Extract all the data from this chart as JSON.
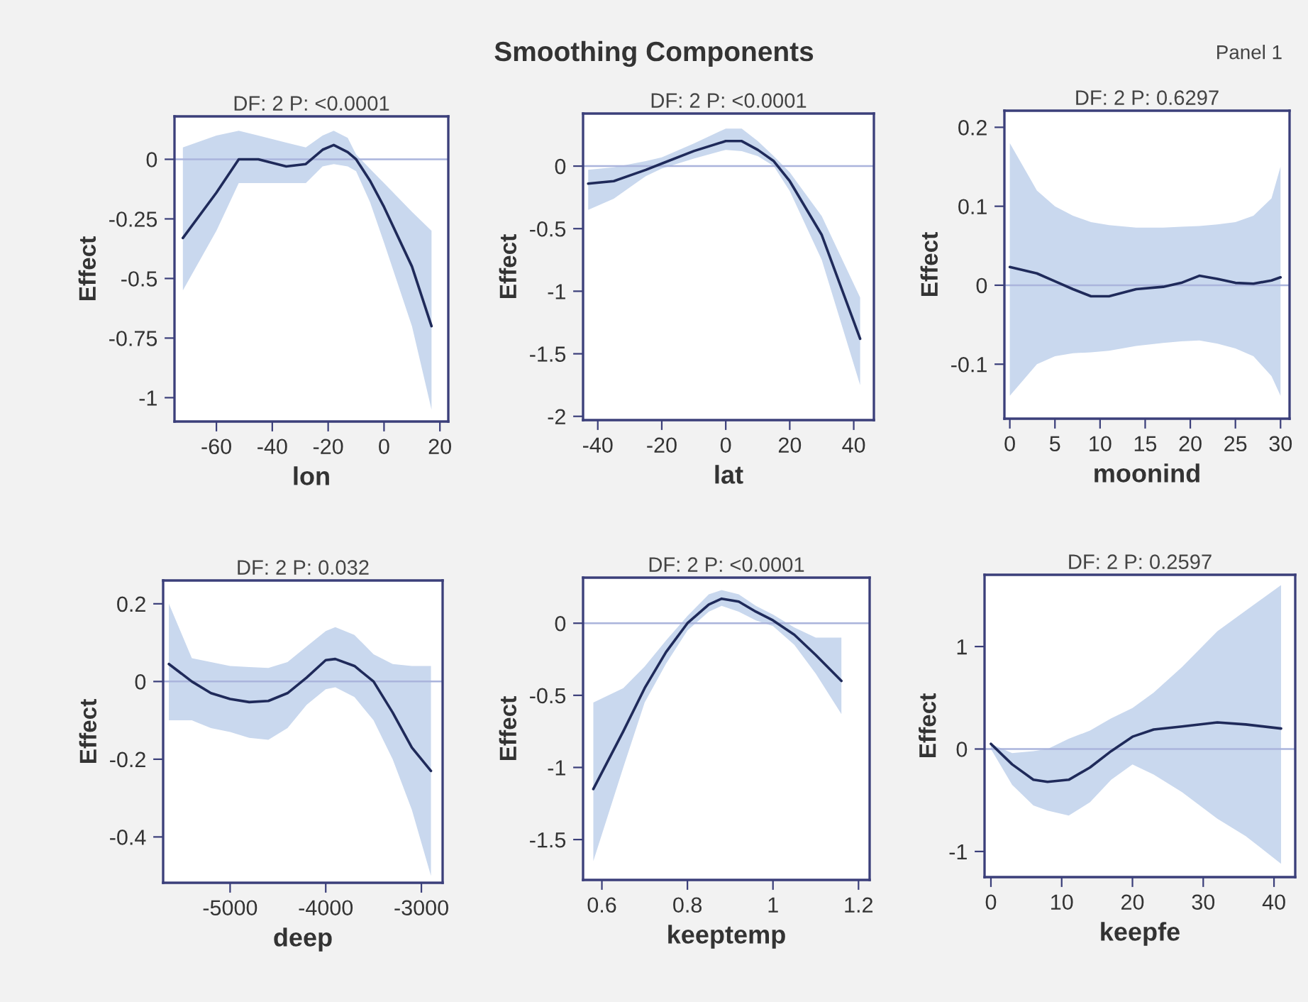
{
  "chart_data": [
    {
      "type": "line",
      "title": "DF: 2 P: <0.0001",
      "xlabel": "lon",
      "ylabel": "Effect",
      "annotations": [
        "Smoothing Components",
        "Panel 1"
      ],
      "xlim": [
        -75,
        23
      ],
      "ylim": [
        -1.1,
        0.18
      ],
      "xticks": [
        -60,
        -40,
        -20,
        0,
        20
      ],
      "yticks": [
        0,
        -0.25,
        -0.5,
        -0.75,
        -1
      ],
      "ref_lines": [
        {
          "axis": "y",
          "value": 0,
          "color": "#aab4dc"
        }
      ],
      "series": [
        {
          "color": "#1f2a5a",
          "x": [
            -72,
            -60,
            -52,
            -45,
            -35,
            -28,
            -22,
            -18,
            -13,
            -10,
            -5,
            0,
            10,
            17
          ],
          "values": [
            -0.33,
            -0.14,
            0.0,
            0.0,
            -0.03,
            -0.02,
            0.04,
            0.06,
            0.03,
            0.0,
            -0.09,
            -0.2,
            -0.45,
            -0.7
          ],
          "lower": [
            -0.55,
            -0.3,
            -0.1,
            -0.1,
            -0.1,
            -0.1,
            -0.03,
            -0.02,
            -0.03,
            -0.05,
            -0.18,
            -0.35,
            -0.7,
            -1.05
          ],
          "upper": [
            0.05,
            0.1,
            0.12,
            0.1,
            0.07,
            0.05,
            0.1,
            0.12,
            0.09,
            0.02,
            -0.04,
            -0.1,
            -0.22,
            -0.3
          ]
        }
      ]
    },
    {
      "type": "line",
      "title": "DF: 2 P: <0.0001",
      "xlabel": "lat",
      "ylabel": "Effect",
      "xlim": [
        -44.6,
        46.3
      ],
      "ylim": [
        -2.03,
        0.42
      ],
      "xticks": [
        -40,
        -20,
        0,
        20,
        40
      ],
      "yticks": [
        0,
        -0.5,
        -1,
        -1.5,
        -2
      ],
      "ref_lines": [
        {
          "axis": "y",
          "value": 0,
          "color": "#aab4dc"
        }
      ],
      "series": [
        {
          "color": "#1f2a5a",
          "x": [
            -43,
            -35,
            -25,
            -20,
            -10,
            0,
            5,
            10,
            15,
            20,
            30,
            42
          ],
          "values": [
            -0.14,
            -0.12,
            -0.03,
            0.02,
            0.12,
            0.2,
            0.2,
            0.13,
            0.04,
            -0.12,
            -0.55,
            -1.38
          ],
          "lower": [
            -0.35,
            -0.26,
            -0.08,
            -0.02,
            0.06,
            0.13,
            0.12,
            0.08,
            0.0,
            -0.2,
            -0.75,
            -1.75
          ],
          "upper": [
            -0.03,
            -0.01,
            0.04,
            0.07,
            0.18,
            0.3,
            0.3,
            0.2,
            0.08,
            -0.05,
            -0.4,
            -1.05
          ]
        }
      ]
    },
    {
      "type": "line",
      "title": "DF: 2 P: 0.6297",
      "xlabel": "moonind",
      "ylabel": "Effect",
      "xlim": [
        -0.6,
        31
      ],
      "ylim": [
        -0.169,
        0.221
      ],
      "xticks": [
        0,
        5,
        10,
        15,
        20,
        25,
        30
      ],
      "yticks": [
        0.2,
        0.1,
        0,
        -0.1
      ],
      "ref_lines": [
        {
          "axis": "y",
          "value": 0,
          "color": "#aab4dc"
        }
      ],
      "series": [
        {
          "color": "#1f2a5a",
          "x": [
            0,
            3,
            5,
            7,
            9,
            11,
            14,
            17,
            19,
            21,
            23,
            25,
            27,
            29,
            30
          ],
          "values": [
            0.023,
            0.015,
            0.005,
            -0.005,
            -0.014,
            -0.014,
            -0.005,
            -0.002,
            0.003,
            0.012,
            0.008,
            0.003,
            0.002,
            0.006,
            0.01
          ],
          "lower": [
            -0.14,
            -0.1,
            -0.09,
            -0.086,
            -0.085,
            -0.083,
            -0.077,
            -0.073,
            -0.071,
            -0.07,
            -0.074,
            -0.08,
            -0.09,
            -0.115,
            -0.14
          ],
          "upper": [
            0.18,
            0.12,
            0.1,
            0.088,
            0.08,
            0.076,
            0.073,
            0.073,
            0.074,
            0.075,
            0.077,
            0.08,
            0.088,
            0.11,
            0.15
          ]
        }
      ]
    },
    {
      "type": "line",
      "title": "DF: 2 P: 0.032",
      "xlabel": "deep",
      "ylabel": "Effect",
      "xlim": [
        -5700,
        -2778
      ],
      "ylim": [
        -0.518,
        0.26
      ],
      "xticks": [
        -5000,
        -4000,
        -3000
      ],
      "yticks": [
        0.2,
        0,
        -0.2,
        -0.4
      ],
      "ref_lines": [
        {
          "axis": "y",
          "value": 0,
          "color": "#aab4dc"
        }
      ],
      "series": [
        {
          "color": "#1f2a5a",
          "x": [
            -5640,
            -5400,
            -5200,
            -5000,
            -4800,
            -4600,
            -4400,
            -4200,
            -4000,
            -3900,
            -3700,
            -3500,
            -3300,
            -3100,
            -2900
          ],
          "values": [
            0.045,
            0.0,
            -0.03,
            -0.045,
            -0.053,
            -0.05,
            -0.03,
            0.01,
            0.055,
            0.058,
            0.04,
            0.0,
            -0.08,
            -0.17,
            -0.23
          ],
          "lower": [
            -0.1,
            -0.1,
            -0.12,
            -0.13,
            -0.145,
            -0.15,
            -0.12,
            -0.06,
            -0.02,
            -0.015,
            -0.04,
            -0.1,
            -0.2,
            -0.33,
            -0.5
          ],
          "upper": [
            0.2,
            0.06,
            0.05,
            0.04,
            0.037,
            0.035,
            0.05,
            0.09,
            0.13,
            0.14,
            0.12,
            0.07,
            0.045,
            0.04,
            0.04
          ]
        }
      ]
    },
    {
      "type": "line",
      "title": "DF: 2 P: <0.0001",
      "xlabel": "keeptemp",
      "ylabel": "Effect",
      "xlim": [
        0.556,
        1.226
      ],
      "ylim": [
        -1.78,
        0.316
      ],
      "xticks": [
        0.6,
        0.8,
        1,
        1.2
      ],
      "yticks": [
        0,
        -0.5,
        -1,
        -1.5
      ],
      "ref_lines": [
        {
          "axis": "y",
          "value": 0,
          "color": "#aab4dc"
        }
      ],
      "series": [
        {
          "color": "#1f2a5a",
          "x": [
            0.58,
            0.65,
            0.7,
            0.75,
            0.8,
            0.85,
            0.88,
            0.92,
            0.96,
            1.0,
            1.05,
            1.1,
            1.16
          ],
          "values": [
            -1.15,
            -0.75,
            -0.45,
            -0.2,
            0.0,
            0.13,
            0.17,
            0.15,
            0.08,
            0.02,
            -0.08,
            -0.22,
            -0.4
          ],
          "lower": [
            -1.65,
            -1.0,
            -0.55,
            -0.28,
            -0.05,
            0.08,
            0.12,
            0.08,
            0.02,
            -0.02,
            -0.15,
            -0.35,
            -0.63
          ],
          "upper": [
            -0.55,
            -0.45,
            -0.3,
            -0.12,
            0.05,
            0.2,
            0.23,
            0.2,
            0.12,
            0.06,
            -0.03,
            -0.1,
            -0.1
          ]
        }
      ]
    },
    {
      "type": "line",
      "title": "DF: 2 P: 0.2597",
      "xlabel": "keepfe",
      "ylabel": "Effect",
      "xlim": [
        -0.9,
        43
      ],
      "ylim": [
        -1.25,
        1.7
      ],
      "xticks": [
        0,
        10,
        20,
        30,
        40
      ],
      "yticks": [
        1,
        0,
        -1
      ],
      "ref_lines": [
        {
          "axis": "y",
          "value": 0,
          "color": "#aab4dc"
        }
      ],
      "series": [
        {
          "color": "#1f2a5a",
          "x": [
            0,
            3,
            6,
            8,
            11,
            14,
            17,
            20,
            23,
            27,
            32,
            36,
            41
          ],
          "values": [
            0.05,
            -0.15,
            -0.3,
            -0.32,
            -0.3,
            -0.18,
            -0.02,
            0.12,
            0.19,
            0.22,
            0.26,
            0.24,
            0.2
          ],
          "lower": [
            0.0,
            -0.35,
            -0.55,
            -0.6,
            -0.65,
            -0.52,
            -0.3,
            -0.15,
            -0.25,
            -0.42,
            -0.68,
            -0.85,
            -1.12
          ],
          "upper": [
            0.05,
            -0.04,
            -0.02,
            0.0,
            0.1,
            0.18,
            0.3,
            0.4,
            0.55,
            0.8,
            1.15,
            1.35,
            1.6
          ]
        }
      ]
    }
  ]
}
